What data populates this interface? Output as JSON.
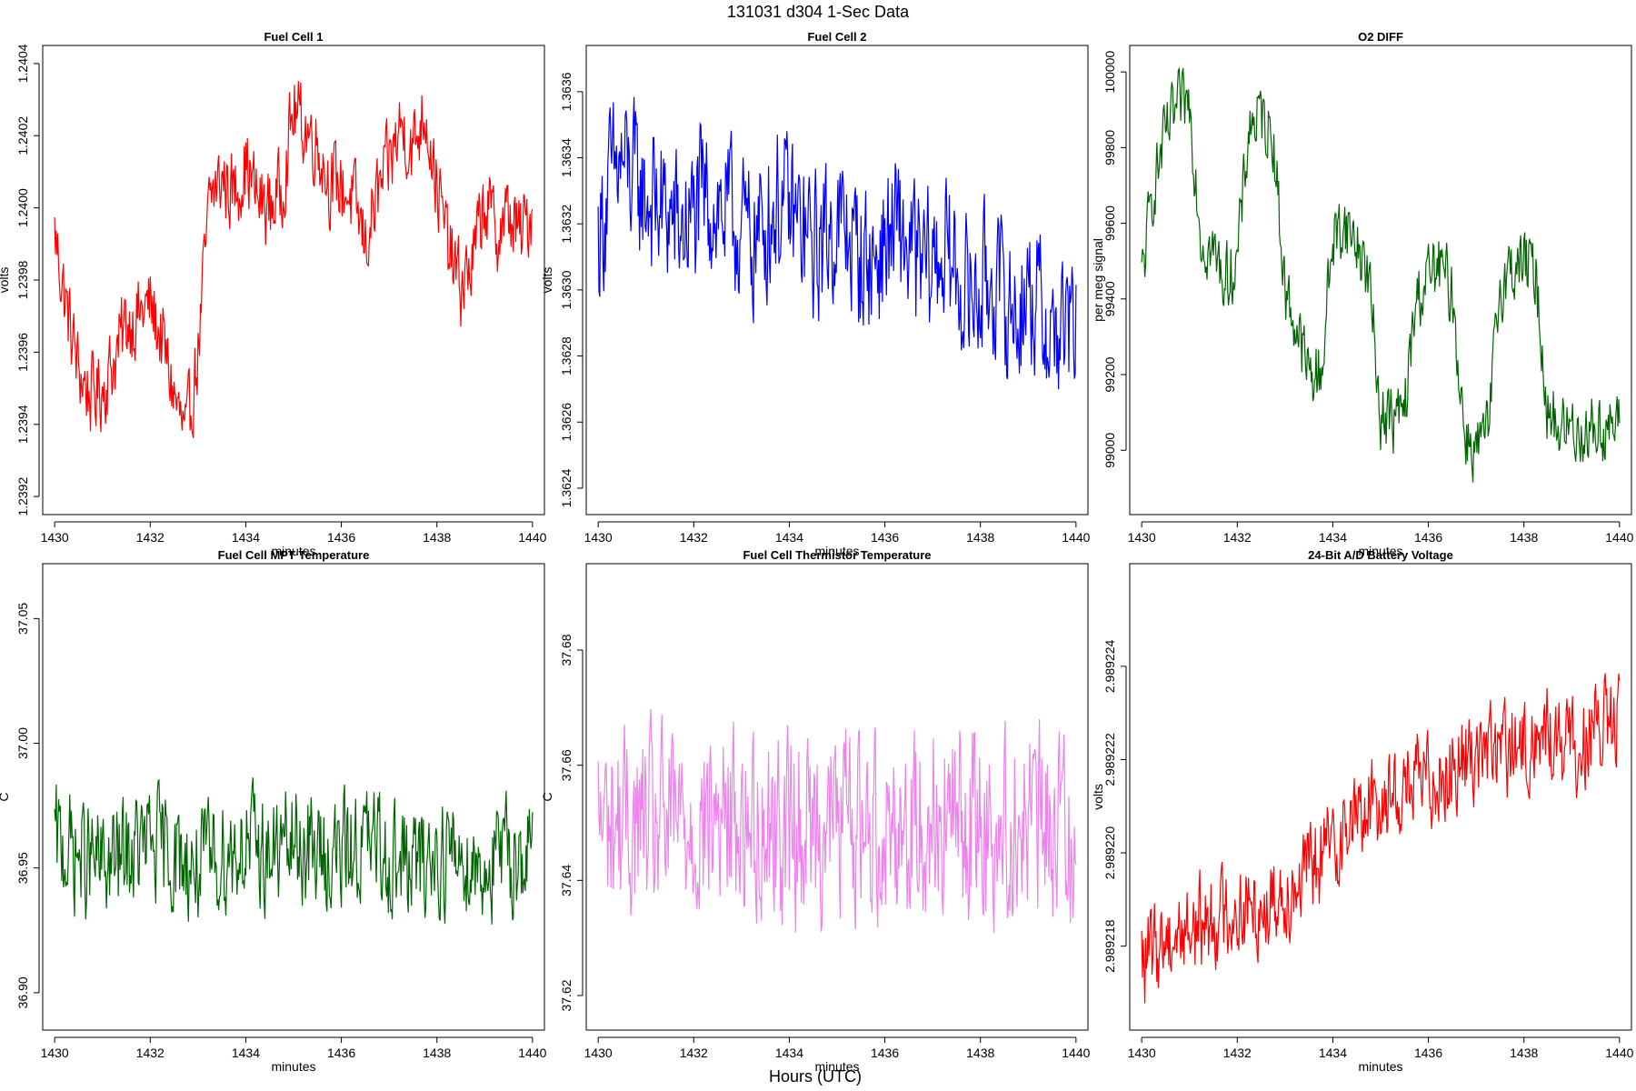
{
  "figure": {
    "title": "131031    d304    1-Sec Data",
    "xlabel_outer": "Hours (UTC)"
  },
  "chart_data": [
    {
      "type": "line",
      "title": "Fuel Cell 1",
      "xlabel": "minutes",
      "ylabel": "volts",
      "color": "#ff0000",
      "xlim": [
        1429.75,
        1440.25
      ],
      "ylim": [
        1.23915,
        1.24045
      ],
      "xticks": [
        1430,
        1432,
        1434,
        1436,
        1438,
        1440
      ],
      "yticks": [
        1.2392,
        1.2394,
        1.2396,
        1.2398,
        1.24,
        1.2402,
        1.2404
      ],
      "ytick_labels": [
        "1.2392",
        "1.2394",
        "1.2396",
        "1.2398",
        "1.2400",
        "1.2402",
        "1.2404"
      ],
      "series": [
        {
          "x": [
            1430.0,
            1430.25,
            1430.5,
            1430.75,
            1431.0,
            1431.25,
            1431.5,
            1431.75,
            1432.0,
            1432.25,
            1432.5,
            1432.75,
            1433.0,
            1433.25,
            1433.5,
            1433.75,
            1434.0,
            1434.25,
            1434.5,
            1434.75,
            1435.0,
            1435.25,
            1435.5,
            1435.75,
            1436.0,
            1436.25,
            1436.5,
            1436.75,
            1437.0,
            1437.25,
            1437.5,
            1437.75,
            1438.0,
            1438.25,
            1438.5,
            1438.75,
            1439.0,
            1439.25,
            1439.5,
            1439.75,
            1440.0
          ],
          "values": [
            1.23993,
            1.23972,
            1.23955,
            1.23948,
            1.2395,
            1.23958,
            1.23968,
            1.2397,
            1.23973,
            1.23963,
            1.23948,
            1.23935,
            1.2396,
            1.24003,
            1.24008,
            1.24004,
            1.24012,
            1.24002,
            1.24,
            1.24005,
            1.24027,
            1.24022,
            1.24018,
            1.24007,
            1.24006,
            1.24002,
            1.2399,
            1.24003,
            1.24012,
            1.24023,
            1.24016,
            1.24028,
            1.24006,
            1.23988,
            1.23978,
            1.23985,
            1.24002,
            1.23993,
            1.23998,
            1.23992,
            1.24
          ]
        }
      ]
    },
    {
      "type": "line",
      "title": "Fuel Cell 2",
      "xlabel": "minutes",
      "ylabel": "volts",
      "color": "#0000ff",
      "xlim": [
        1429.75,
        1440.25
      ],
      "ylim": [
        1.36232,
        1.36374
      ],
      "xticks": [
        1430,
        1432,
        1434,
        1436,
        1438,
        1440
      ],
      "yticks": [
        1.3624,
        1.3626,
        1.3628,
        1.363,
        1.3632,
        1.3634,
        1.3636
      ],
      "ytick_labels": [
        "1.3624",
        "1.3626",
        "1.3628",
        "1.3630",
        "1.3632",
        "1.3634",
        "1.3636"
      ],
      "series": [
        {
          "x": [
            1430.0,
            1430.25,
            1430.5,
            1430.75,
            1431.0,
            1431.25,
            1431.5,
            1431.75,
            1432.0,
            1432.25,
            1432.5,
            1432.75,
            1433.0,
            1433.25,
            1433.5,
            1433.75,
            1434.0,
            1434.25,
            1434.5,
            1434.75,
            1435.0,
            1435.25,
            1435.5,
            1435.75,
            1436.0,
            1436.25,
            1436.5,
            1436.75,
            1437.0,
            1437.25,
            1437.5,
            1437.75,
            1438.0,
            1438.25,
            1438.5,
            1438.75,
            1439.0,
            1439.25,
            1439.5,
            1439.75,
            1440.0
          ],
          "values": [
            1.36315,
            1.36332,
            1.36338,
            1.36333,
            1.36328,
            1.36325,
            1.36322,
            1.36318,
            1.36322,
            1.36328,
            1.36325,
            1.36322,
            1.36318,
            1.36315,
            1.3632,
            1.36326,
            1.36324,
            1.36318,
            1.36312,
            1.36316,
            1.3632,
            1.36316,
            1.3631,
            1.36308,
            1.36314,
            1.36318,
            1.36312,
            1.36306,
            1.36308,
            1.36312,
            1.36304,
            1.36298,
            1.363,
            1.36304,
            1.36296,
            1.36292,
            1.363,
            1.36294,
            1.36286,
            1.36288,
            1.36288
          ]
        }
      ]
    },
    {
      "type": "line",
      "title": "O2 DIFF",
      "xlabel": "minutes",
      "ylabel": "per meg signal",
      "color": "#006400",
      "xlim": [
        1429.75,
        1440.25
      ],
      "ylim": [
        98830,
        100070
      ],
      "xticks": [
        1430,
        1432,
        1434,
        1436,
        1438,
        1440
      ],
      "yticks": [
        99000,
        99200,
        99400,
        99600,
        99800,
        100000
      ],
      "ytick_labels": [
        "99000",
        "99200",
        "99400",
        "99600",
        "99800",
        "100000"
      ],
      "series": [
        {
          "x": [
            1430.0,
            1430.25,
            1430.5,
            1430.75,
            1431.0,
            1431.25,
            1431.5,
            1431.75,
            1432.0,
            1432.25,
            1432.5,
            1432.75,
            1433.0,
            1433.25,
            1433.5,
            1433.75,
            1434.0,
            1434.25,
            1434.5,
            1434.75,
            1435.0,
            1435.25,
            1435.5,
            1435.75,
            1436.0,
            1436.25,
            1436.5,
            1436.75,
            1437.0,
            1437.25,
            1437.5,
            1437.75,
            1438.0,
            1438.25,
            1438.5,
            1438.75,
            1439.0,
            1439.25,
            1439.5,
            1439.75,
            1440.0
          ],
          "values": [
            99450,
            99700,
            99830,
            99900,
            99920,
            99560,
            99520,
            99450,
            99500,
            99860,
            99880,
            99840,
            99420,
            99320,
            99200,
            99200,
            99560,
            99600,
            99550,
            99460,
            99100,
            99080,
            99100,
            99400,
            99460,
            99480,
            99420,
            99050,
            99000,
            99040,
            99440,
            99480,
            99500,
            99460,
            99100,
            99060,
            99060,
            99050,
            99060,
            99060,
            99060
          ]
        }
      ]
    },
    {
      "type": "line",
      "title": "Fuel Cell MPT Temperature",
      "xlabel": "minutes",
      "ylabel": "C",
      "color": "#006400",
      "xlim": [
        1429.75,
        1440.25
      ],
      "ylim": [
        36.885,
        37.072
      ],
      "xticks": [
        1430,
        1432,
        1434,
        1436,
        1438,
        1440
      ],
      "yticks": [
        36.9,
        36.95,
        37.0,
        37.05
      ],
      "ytick_labels": [
        "36.90",
        "36.95",
        "37.00",
        "37.05"
      ],
      "series": [
        {
          "x": [
            1430.0,
            1430.5,
            1431.0,
            1431.5,
            1432.0,
            1432.5,
            1433.0,
            1433.5,
            1434.0,
            1434.5,
            1435.0,
            1435.5,
            1436.0,
            1436.5,
            1437.0,
            1437.5,
            1438.0,
            1438.5,
            1439.0,
            1439.5,
            1440.0
          ],
          "values": [
            36.96,
            36.955,
            36.95,
            36.955,
            36.96,
            36.955,
            36.95,
            36.955,
            36.96,
            36.955,
            36.96,
            36.955,
            36.955,
            36.96,
            36.955,
            36.95,
            36.955,
            36.955,
            36.95,
            36.955,
            36.955
          ]
        }
      ]
    },
    {
      "type": "line",
      "title": "Fuel Cell Thermistor Temperature",
      "xlabel": "minutes",
      "ylabel": "C",
      "color": "#ee82ee",
      "xlim": [
        1429.75,
        1440.25
      ],
      "ylim": [
        37.614,
        37.695
      ],
      "xticks": [
        1430,
        1432,
        1434,
        1436,
        1438,
        1440
      ],
      "yticks": [
        37.62,
        37.64,
        37.66,
        37.68
      ],
      "ytick_labels": [
        "37.62",
        "37.64",
        "37.66",
        "37.68"
      ],
      "series": [
        {
          "x": [
            1430.0,
            1430.5,
            1431.0,
            1431.5,
            1432.0,
            1432.5,
            1433.0,
            1433.5,
            1434.0,
            1434.5,
            1435.0,
            1435.5,
            1436.0,
            1436.5,
            1437.0,
            1437.5,
            1438.0,
            1438.5,
            1439.0,
            1439.5,
            1440.0
          ],
          "values": [
            37.65,
            37.65,
            37.649,
            37.65,
            37.65,
            37.651,
            37.65,
            37.65,
            37.649,
            37.65,
            37.651,
            37.65,
            37.65,
            37.65,
            37.651,
            37.65,
            37.65,
            37.649,
            37.65,
            37.65,
            37.65
          ]
        }
      ]
    },
    {
      "type": "line",
      "title": "24-Bit A/D Battery Voltage",
      "xlabel": "minutes",
      "ylabel": "volts",
      "color": "#ff0000",
      "xlim": [
        1429.75,
        1440.25
      ],
      "ylim": [
        2.9892162,
        2.9892262
      ],
      "xticks": [
        1430,
        1432,
        1434,
        1436,
        1438,
        1440
      ],
      "yticks": [
        2.989218,
        2.98922,
        2.989222,
        2.989224
      ],
      "ytick_labels": [
        "2.989218",
        "2.989220",
        "2.989222",
        "2.989224"
      ],
      "series": [
        {
          "x": [
            1430.0,
            1430.5,
            1431.0,
            1431.5,
            1432.0,
            1432.5,
            1433.0,
            1433.5,
            1434.0,
            1434.5,
            1435.0,
            1435.5,
            1436.0,
            1436.5,
            1437.0,
            1437.5,
            1438.0,
            1438.5,
            1439.0,
            1439.5,
            1440.0
          ],
          "values": [
            2.9892176,
            2.9892182,
            2.9892184,
            2.9892186,
            2.9892188,
            2.9892188,
            2.9892192,
            2.9892196,
            2.9892202,
            2.9892208,
            2.9892212,
            2.9892214,
            2.9892216,
            2.9892218,
            2.9892222,
            2.9892222,
            2.9892222,
            2.9892226,
            2.9892222,
            2.9892226,
            2.9892228
          ]
        }
      ]
    }
  ]
}
